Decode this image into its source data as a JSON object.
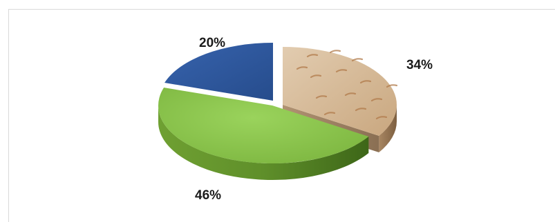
{
  "chart_data": {
    "type": "pie",
    "style": "3d-exploded",
    "title": "",
    "legend": "none",
    "slices": [
      {
        "label": "34%",
        "value": 34,
        "color": "#d4b795",
        "texture": "wood-grain"
      },
      {
        "label": "46%",
        "value": 46,
        "color": "#8bc34a"
      },
      {
        "label": "20%",
        "value": 20,
        "color": "#2f5596"
      }
    ]
  }
}
